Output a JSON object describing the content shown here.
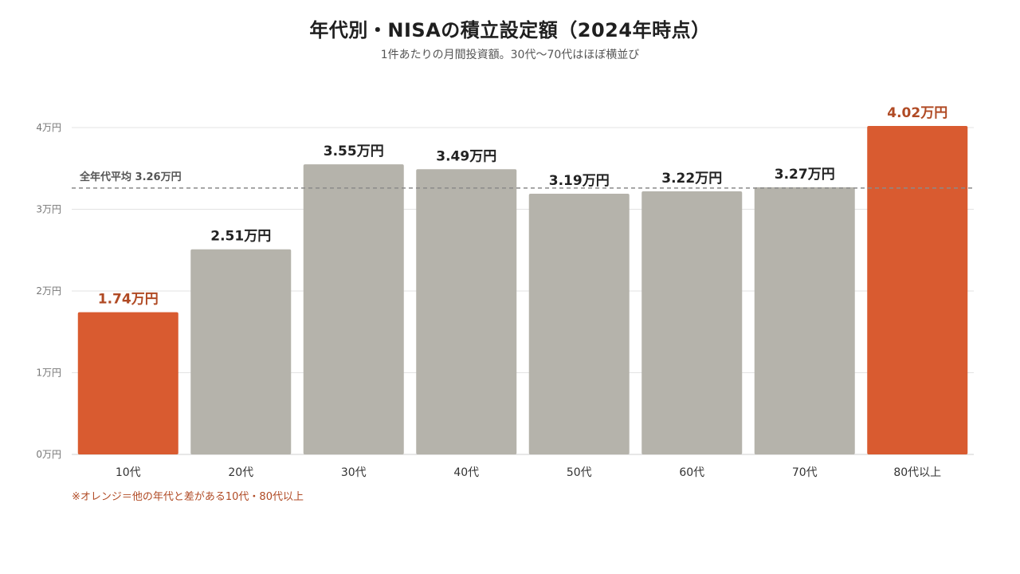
{
  "title": "年代別・NISAの積立設定額（2024年時点）",
  "subtitle": "1件あたりの月間投資額。30代〜70代はほぼ横並び",
  "note": "※オレンジ＝他の年代と差がある10代・80代以上",
  "colors": {
    "highlight": "#d95b30",
    "highlight_label": "#b04a24",
    "neutral": "#b5b3ab",
    "grid": "#e3e3e3",
    "average_line": "#8a8a8a",
    "axis_text": "#777777"
  },
  "chart_data": {
    "type": "bar",
    "categories": [
      "10代",
      "20代",
      "30代",
      "40代",
      "50代",
      "60代",
      "70代",
      "80代以上"
    ],
    "values": [
      1.74,
      2.51,
      3.55,
      3.49,
      3.19,
      3.22,
      3.27,
      4.02
    ],
    "value_labels": [
      "1.74万円",
      "2.51万円",
      "3.55万円",
      "3.49万円",
      "3.19万円",
      "3.22万円",
      "3.27万円",
      "4.02万円"
    ],
    "highlighted": [
      true,
      false,
      false,
      false,
      false,
      false,
      false,
      true
    ],
    "ylim": [
      0,
      4
    ],
    "yticks": [
      0,
      1,
      2,
      3,
      4
    ],
    "ytick_labels": [
      "0万円",
      "1万円",
      "2万円",
      "3万円",
      "4万円"
    ],
    "grid": true,
    "average": {
      "value": 3.26,
      "label": "全年代平均 3.26万円"
    }
  }
}
